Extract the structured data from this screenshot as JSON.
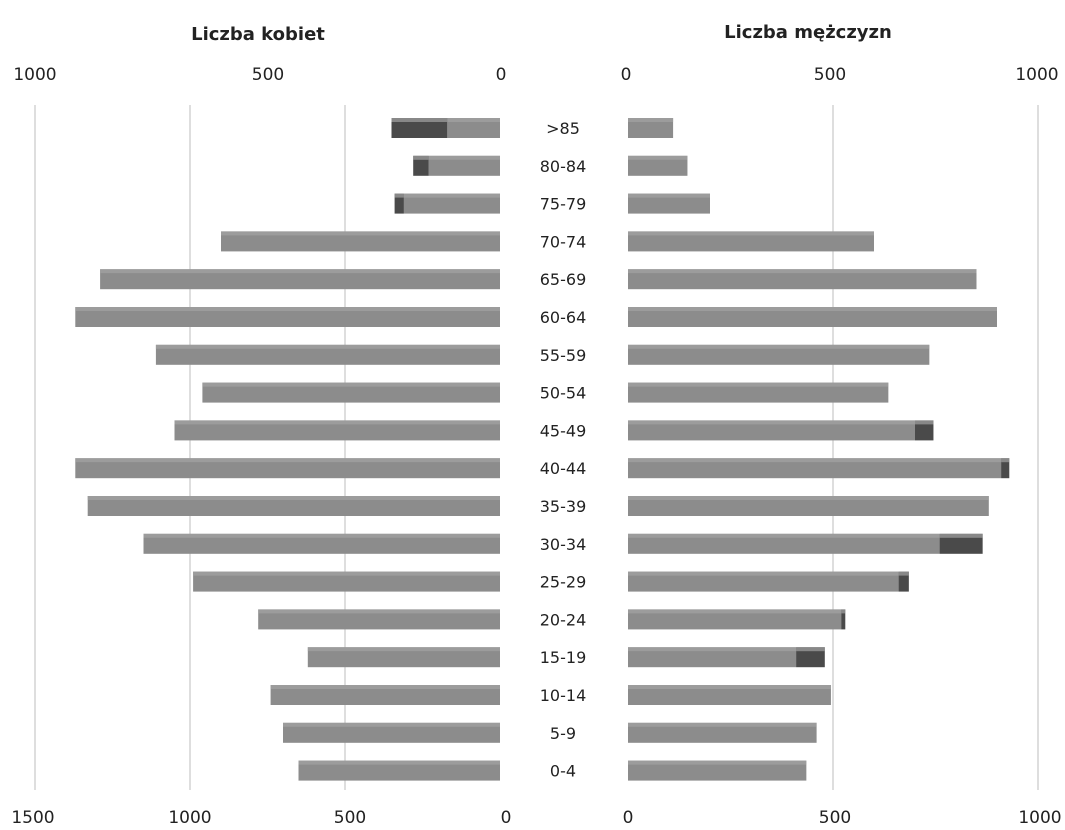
{
  "chart_data": {
    "type": "bar",
    "orientation": "horizontal",
    "layout": "population-pyramid",
    "categories": [
      ">85",
      "80-84",
      "75-79",
      "70-74",
      "65-69",
      "60-64",
      "55-59",
      "50-54",
      "45-49",
      "40-44",
      "35-39",
      "30-34",
      "25-29",
      "20-24",
      "15-19",
      "10-14",
      "5-9",
      "0-4"
    ],
    "panels": [
      {
        "title": "Liczba kobiet",
        "top_ticks": [
          "1000",
          "500",
          "0"
        ],
        "bottom_ticks": [
          "1500",
          "1000",
          "500",
          "0"
        ],
        "xlim": [
          0,
          1500
        ],
        "series": [
          {
            "values": [
              170,
              230,
              310,
              900,
              1290,
              1370,
              1110,
              960,
              1050,
              1370,
              1330,
              1150,
              990,
              780,
              620,
              740,
              700,
              650
            ]
          },
          {
            "values": [
              180,
              50,
              30,
              0,
              0,
              0,
              0,
              0,
              0,
              0,
              0,
              0,
              0,
              0,
              0,
              0,
              0,
              0
            ]
          }
        ]
      },
      {
        "title": "Liczba mężczyzn",
        "top_ticks": [
          "0",
          "500",
          "1000"
        ],
        "bottom_ticks": [
          "0",
          "500",
          "1000"
        ],
        "xlim": [
          0,
          1000
        ],
        "series": [
          {
            "values": [
              110,
              145,
              200,
              600,
              850,
              900,
              735,
              635,
              700,
              910,
              880,
              760,
              660,
              520,
              410,
              495,
              460,
              435
            ]
          },
          {
            "values": [
              0,
              0,
              0,
              0,
              0,
              0,
              0,
              0,
              45,
              20,
              0,
              105,
              25,
              10,
              70,
              0,
              0,
              0
            ]
          }
        ]
      }
    ],
    "colors": {
      "bar": "#8c8c8c",
      "bar_top": "#a3a3a3",
      "bar_extra": "#4a4a4a",
      "gridline": "#bdbdbd"
    },
    "grid": true
  }
}
